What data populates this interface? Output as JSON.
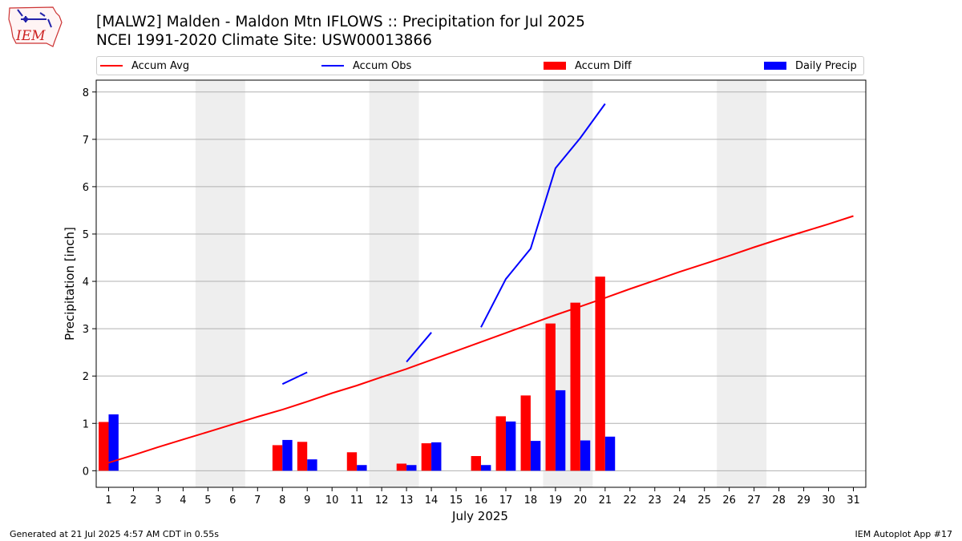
{
  "header": {
    "title_line1": "[MALW2] Malden - Maldon Mtn IFLOWS :: Precipitation for Jul 2025",
    "title_line2": "NCEI 1991-2020 Climate Site: USW00013866"
  },
  "logo": {
    "text": "IEM",
    "icon": "iem-iowa-logo",
    "color": "#cc2222"
  },
  "legend": {
    "items": [
      {
        "label": "Accum Avg",
        "kind": "line",
        "color": "#ff0000"
      },
      {
        "label": "Accum Obs",
        "kind": "line",
        "color": "#0000ff"
      },
      {
        "label": "Accum Diff",
        "kind": "box",
        "color": "#ff0000"
      },
      {
        "label": "Daily Precip",
        "kind": "box",
        "color": "#0000ff"
      }
    ]
  },
  "chart_data": {
    "type": "bar",
    "xlabel": "July 2025",
    "ylabel": "Precipitation [inch]",
    "xlim": [
      0.5,
      31.5
    ],
    "ylim": [
      -0.35,
      8.25
    ],
    "yticks": [
      0,
      1,
      2,
      3,
      4,
      5,
      6,
      7,
      8
    ],
    "xticks": [
      1,
      2,
      3,
      4,
      5,
      6,
      7,
      8,
      9,
      10,
      11,
      12,
      13,
      14,
      15,
      16,
      17,
      18,
      19,
      20,
      21,
      22,
      23,
      24,
      25,
      26,
      27,
      28,
      29,
      30,
      31
    ],
    "grid": "horizontal",
    "legend_position": "top",
    "weekend_shading": [
      [
        4.5,
        6.5
      ],
      [
        11.5,
        13.5
      ],
      [
        18.5,
        20.5
      ],
      [
        25.5,
        27.5
      ]
    ],
    "colors": {
      "avg": "#ff0000",
      "obs": "#0000ff",
      "diff": "#ff0000",
      "daily": "#0000ff",
      "weekend": "#eeeeee",
      "grid": "#b0b0b0"
    },
    "accum_avg": {
      "name": "Accum Avg",
      "x": [
        1,
        2,
        3,
        4,
        5,
        6,
        7,
        8,
        9,
        10,
        11,
        12,
        13,
        14,
        15,
        16,
        17,
        18,
        19,
        20,
        21,
        22,
        23,
        24,
        25,
        26,
        27,
        28,
        29,
        30,
        31
      ],
      "values": [
        0.17,
        0.33,
        0.5,
        0.66,
        0.82,
        0.98,
        1.14,
        1.29,
        1.46,
        1.64,
        1.8,
        1.98,
        2.15,
        2.34,
        2.53,
        2.72,
        2.91,
        3.1,
        3.29,
        3.47,
        3.65,
        3.84,
        4.02,
        4.2,
        4.37,
        4.54,
        4.72,
        4.89,
        5.05,
        5.21,
        5.38
      ]
    },
    "accum_obs": {
      "name": "Accum Obs",
      "segments": [
        {
          "x": [
            8,
            9
          ],
          "values": [
            1.83,
            2.08
          ]
        },
        {
          "x": [
            13,
            14
          ],
          "values": [
            2.3,
            2.92
          ]
        },
        {
          "x": [
            16,
            17,
            18,
            19,
            20,
            21
          ],
          "values": [
            3.03,
            4.05,
            4.69,
            6.39,
            7.03,
            7.75
          ]
        }
      ]
    },
    "accum_diff": {
      "name": "Accum Diff",
      "x": [
        1,
        8,
        9,
        11,
        13,
        14,
        16,
        17,
        18,
        19,
        20,
        21
      ],
      "values": [
        1.03,
        0.54,
        0.61,
        0.39,
        0.15,
        0.58,
        0.31,
        1.15,
        1.59,
        3.11,
        3.55,
        4.1
      ]
    },
    "daily_precip": {
      "name": "Daily Precip",
      "x": [
        1,
        8,
        9,
        11,
        13,
        14,
        16,
        17,
        18,
        19,
        20,
        21
      ],
      "values": [
        1.19,
        0.65,
        0.24,
        0.12,
        0.12,
        0.6,
        0.12,
        1.04,
        0.63,
        1.7,
        0.64,
        0.72
      ]
    }
  },
  "footer": {
    "left": "Generated at 21 Jul 2025 4:57 AM CDT in 0.55s",
    "right": "IEM Autoplot App #17"
  }
}
